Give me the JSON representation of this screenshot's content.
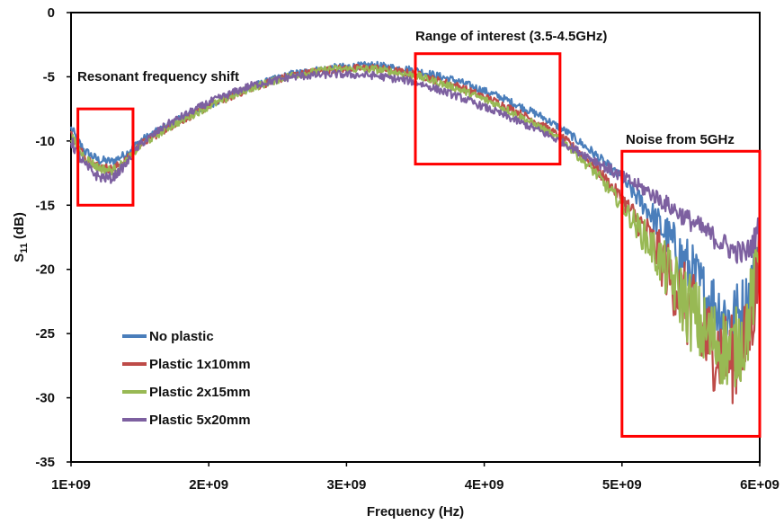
{
  "chart_data": {
    "type": "line",
    "title": "",
    "xlabel": "Frequency (Hz)",
    "ylabel_main": "S",
    "ylabel_sub": "11",
    "ylabel_unit": " (dB)",
    "xlim": [
      1000000000,
      6000000000
    ],
    "ylim": [
      -35,
      0
    ],
    "x_ticks": [
      1000000000,
      2000000000,
      3000000000,
      4000000000,
      5000000000,
      6000000000
    ],
    "x_tick_labels": [
      "1E+09",
      "2E+09",
      "3E+09",
      "4E+09",
      "5E+09",
      "6E+09"
    ],
    "y_ticks": [
      0,
      -5,
      -10,
      -15,
      -20,
      -25,
      -30,
      -35
    ],
    "y_tick_labels": [
      "0",
      "-5",
      "-10",
      "-15",
      "-20",
      "-25",
      "-30",
      "-35"
    ],
    "grid": false,
    "legend_position": "bottom-left",
    "series": [
      {
        "name": "No plastic",
        "color": "#4a7ebb",
        "noise": [
          [
            1.0,
            0.4
          ],
          [
            1.5,
            0.3
          ],
          [
            4.6,
            0.3
          ],
          [
            5.0,
            0.5
          ],
          [
            5.2,
            1.0
          ],
          [
            5.5,
            2.5
          ],
          [
            6.0,
            3.0
          ]
        ],
        "x": [
          1.0,
          1.05,
          1.1,
          1.2,
          1.3,
          1.4,
          1.5,
          1.7,
          2.0,
          2.3,
          2.6,
          2.9,
          3.2,
          3.5,
          3.8,
          4.1,
          4.4,
          4.6,
          4.8,
          5.0,
          5.2,
          5.4,
          5.6,
          5.8,
          5.9,
          5.95,
          6.0
        ],
        "y": [
          -9.0,
          -10.0,
          -10.8,
          -11.5,
          -11.6,
          -11.0,
          -10.0,
          -8.8,
          -7.2,
          -5.8,
          -4.8,
          -4.3,
          -4.1,
          -4.5,
          -5.3,
          -6.5,
          -8.0,
          -9.3,
          -11.0,
          -13.0,
          -15.5,
          -18.5,
          -22.0,
          -24.0,
          -23.0,
          -21.0,
          -17.5
        ]
      },
      {
        "name": "Plastic 1x10mm",
        "color": "#be4b48",
        "noise": [
          [
            1.0,
            0.4
          ],
          [
            1.5,
            0.3
          ],
          [
            4.6,
            0.3
          ],
          [
            5.0,
            0.6
          ],
          [
            5.2,
            1.5
          ],
          [
            5.5,
            3.5
          ],
          [
            6.0,
            3.5
          ]
        ],
        "x": [
          1.0,
          1.05,
          1.1,
          1.2,
          1.3,
          1.4,
          1.5,
          1.7,
          2.0,
          2.3,
          2.6,
          2.9,
          3.2,
          3.5,
          3.8,
          4.1,
          4.4,
          4.6,
          4.8,
          5.0,
          5.2,
          5.4,
          5.6,
          5.8,
          5.9,
          5.95,
          6.0
        ],
        "y": [
          -9.5,
          -10.5,
          -11.2,
          -12.0,
          -12.2,
          -11.5,
          -10.3,
          -9.0,
          -7.3,
          -5.9,
          -4.9,
          -4.4,
          -4.3,
          -4.8,
          -5.7,
          -7.0,
          -8.6,
          -10.0,
          -12.0,
          -14.5,
          -17.5,
          -21.5,
          -25.5,
          -27.0,
          -26.0,
          -23.0,
          -19.0
        ]
      },
      {
        "name": "Plastic 2x15mm",
        "color": "#98b954",
        "noise": [
          [
            1.0,
            0.4
          ],
          [
            1.5,
            0.3
          ],
          [
            4.6,
            0.3
          ],
          [
            5.0,
            0.6
          ],
          [
            5.2,
            1.5
          ],
          [
            5.5,
            3.2
          ],
          [
            6.0,
            3.2
          ]
        ],
        "x": [
          1.0,
          1.05,
          1.1,
          1.2,
          1.3,
          1.4,
          1.5,
          1.7,
          2.0,
          2.3,
          2.6,
          2.9,
          3.2,
          3.5,
          3.8,
          4.1,
          4.4,
          4.6,
          4.8,
          5.0,
          5.2,
          5.4,
          5.6,
          5.8,
          5.9,
          5.95,
          6.0
        ],
        "y": [
          -9.6,
          -10.6,
          -11.3,
          -12.1,
          -12.3,
          -11.6,
          -10.4,
          -9.0,
          -7.3,
          -5.9,
          -4.9,
          -4.4,
          -4.4,
          -4.9,
          -5.9,
          -7.2,
          -8.9,
          -10.3,
          -12.4,
          -15.0,
          -18.0,
          -21.5,
          -25.0,
          -26.5,
          -25.0,
          -22.0,
          -18.0
        ]
      },
      {
        "name": "Plastic 5x20mm",
        "color": "#7d60a0",
        "noise": [
          [
            1.0,
            0.5
          ],
          [
            1.5,
            0.3
          ],
          [
            4.6,
            0.3
          ],
          [
            5.0,
            0.5
          ],
          [
            5.5,
            0.8
          ],
          [
            6.0,
            1.0
          ]
        ],
        "x": [
          1.0,
          1.05,
          1.1,
          1.2,
          1.3,
          1.4,
          1.5,
          1.7,
          2.0,
          2.3,
          2.6,
          2.9,
          3.2,
          3.5,
          3.8,
          4.1,
          4.4,
          4.6,
          4.8,
          5.0,
          5.2,
          5.4,
          5.6,
          5.8,
          5.9,
          5.95,
          6.0
        ],
        "y": [
          -10.0,
          -11.0,
          -11.9,
          -12.8,
          -12.9,
          -11.8,
          -10.3,
          -8.7,
          -7.0,
          -5.7,
          -5.0,
          -4.8,
          -4.9,
          -5.4,
          -6.5,
          -7.8,
          -9.2,
          -10.3,
          -11.5,
          -12.8,
          -14.0,
          -15.5,
          -17.0,
          -18.5,
          -18.8,
          -18.0,
          -16.5
        ]
      }
    ],
    "annotations": [
      {
        "text": "Resonant frequency shift",
        "box_x": [
          1.05,
          1.45
        ],
        "box_y": [
          -7.5,
          -15.0
        ]
      },
      {
        "text": "Range of interest (3.5-4.5GHz)",
        "box_x": [
          3.5,
          4.55
        ],
        "box_y": [
          -3.2,
          -11.8
        ]
      },
      {
        "text": "Noise from 5GHz",
        "box_x": [
          5.0,
          6.0
        ],
        "box_y": [
          -10.8,
          -33.0
        ]
      }
    ]
  }
}
